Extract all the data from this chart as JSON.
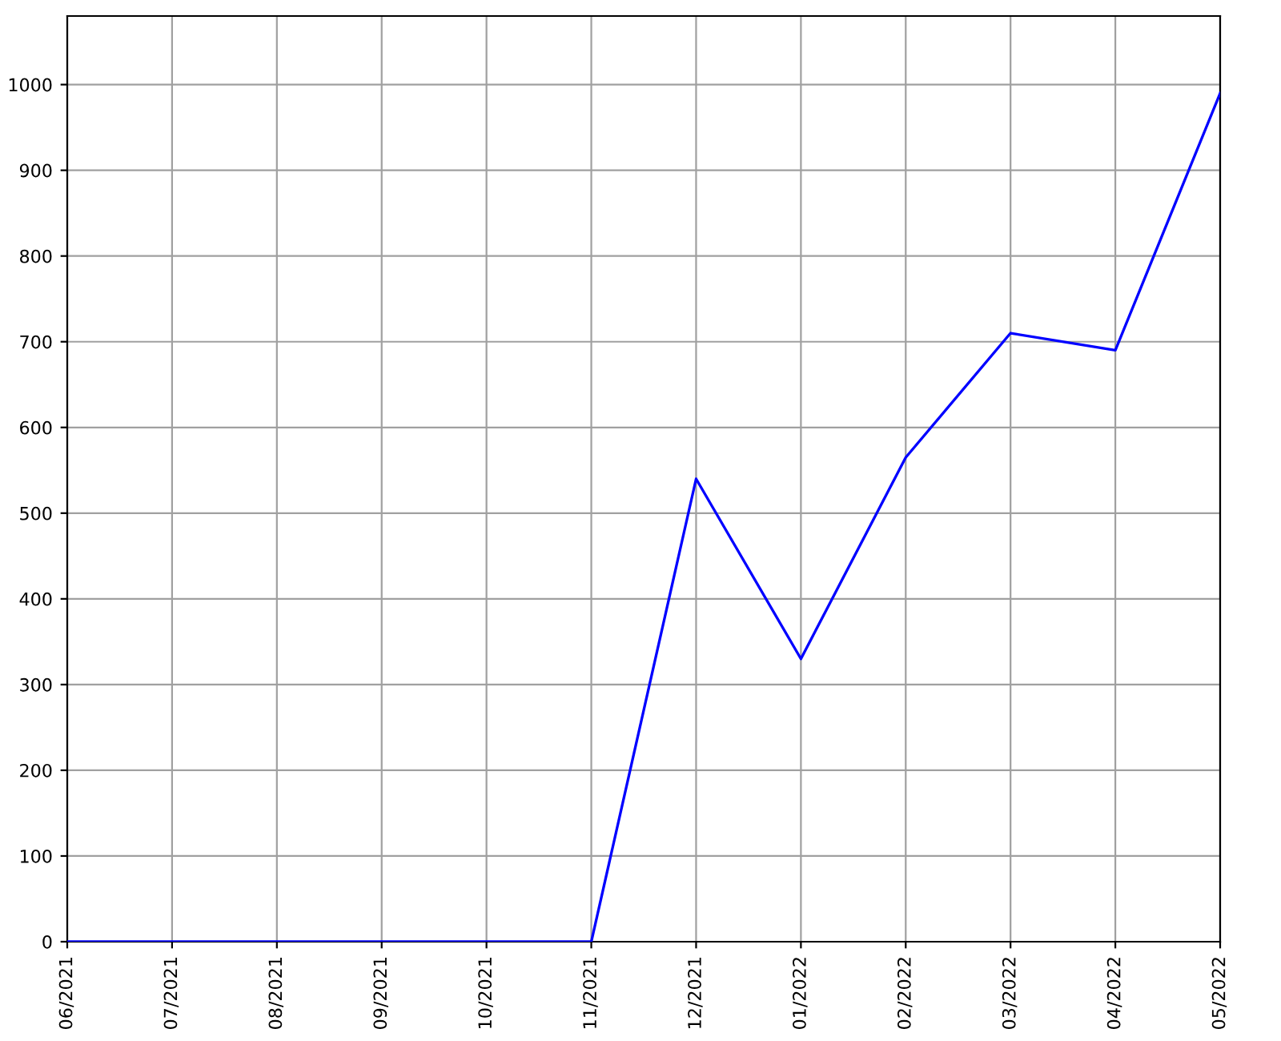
{
  "chart_data": {
    "type": "line",
    "categories": [
      "06/2021",
      "07/2021",
      "08/2021",
      "09/2021",
      "10/2021",
      "11/2021",
      "12/2021",
      "01/2022",
      "02/2022",
      "03/2022",
      "04/2022",
      "05/2022"
    ],
    "series": [
      {
        "color": "#0000ff",
        "values": [
          0,
          0,
          0,
          0,
          0,
          0,
          540,
          330,
          565,
          710,
          690,
          990
        ]
      }
    ],
    "ylim": [
      0,
      1080
    ],
    "yticks": [
      0,
      100,
      200,
      300,
      400,
      500,
      600,
      700,
      800,
      900,
      1000
    ],
    "grid": true,
    "legend": false,
    "marker": "none",
    "line_style": "solid"
  }
}
